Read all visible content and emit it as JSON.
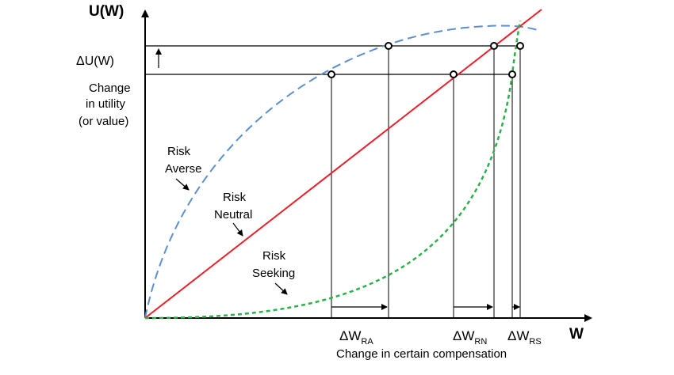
{
  "y_axis": {
    "title": "U(W)"
  },
  "x_axis": {
    "title": "W",
    "caption": "Change in certain compensation"
  },
  "delta_u": {
    "label": "ΔU(W)"
  },
  "y_note": {
    "line1": "Change",
    "line2": "in utility",
    "line3": "(or value)"
  },
  "curves": {
    "risk_averse": {
      "line1": "Risk",
      "line2": "Averse",
      "color": "#5b8fd0",
      "style": "long-dash"
    },
    "risk_neutral": {
      "line1": "Risk",
      "line2": "Neutral",
      "color": "#e8202a",
      "style": "solid"
    },
    "risk_seeking": {
      "line1": "Risk",
      "line2": "Seeking",
      "color": "#2bb04a",
      "style": "short-dash"
    }
  },
  "deltas": {
    "ra": {
      "main": "ΔW",
      "sub": "RA"
    },
    "rn": {
      "main": "ΔW",
      "sub": "RN"
    },
    "rs": {
      "main": "ΔW",
      "sub": "RS"
    }
  }
}
